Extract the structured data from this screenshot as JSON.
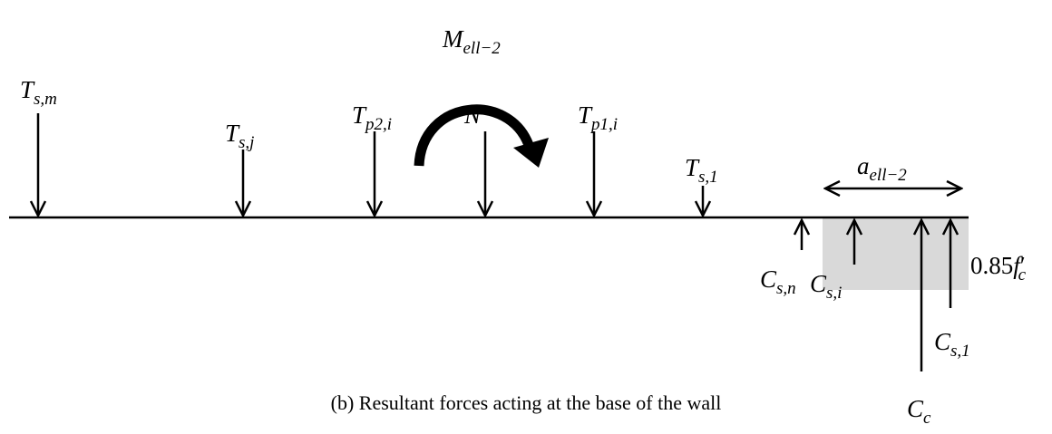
{
  "caption": "(b) Resultant forces acting at the base of the wall",
  "moment": {
    "main": "M",
    "sub": "ell−2"
  },
  "tension_forces": [
    {
      "main": "T",
      "sub": "s,m"
    },
    {
      "main": "T",
      "sub": "s,j"
    },
    {
      "main": "T",
      "sub": "p2,i"
    },
    {
      "main": "N"
    },
    {
      "main": "T",
      "sub": "p1,i"
    },
    {
      "main": "T",
      "sub": "s,1"
    }
  ],
  "compression_forces": [
    {
      "main": "C",
      "sub": "s,n"
    },
    {
      "main": "C",
      "sub": "s,i"
    },
    {
      "main": "C",
      "sub": "c"
    },
    {
      "main": "C",
      "sub": "s,1"
    }
  ],
  "block_depth": {
    "main": "a",
    "sub": "ell−2"
  },
  "stress": {
    "number": "0.85",
    "main": "f",
    "sub": "c",
    "sup": "′"
  }
}
